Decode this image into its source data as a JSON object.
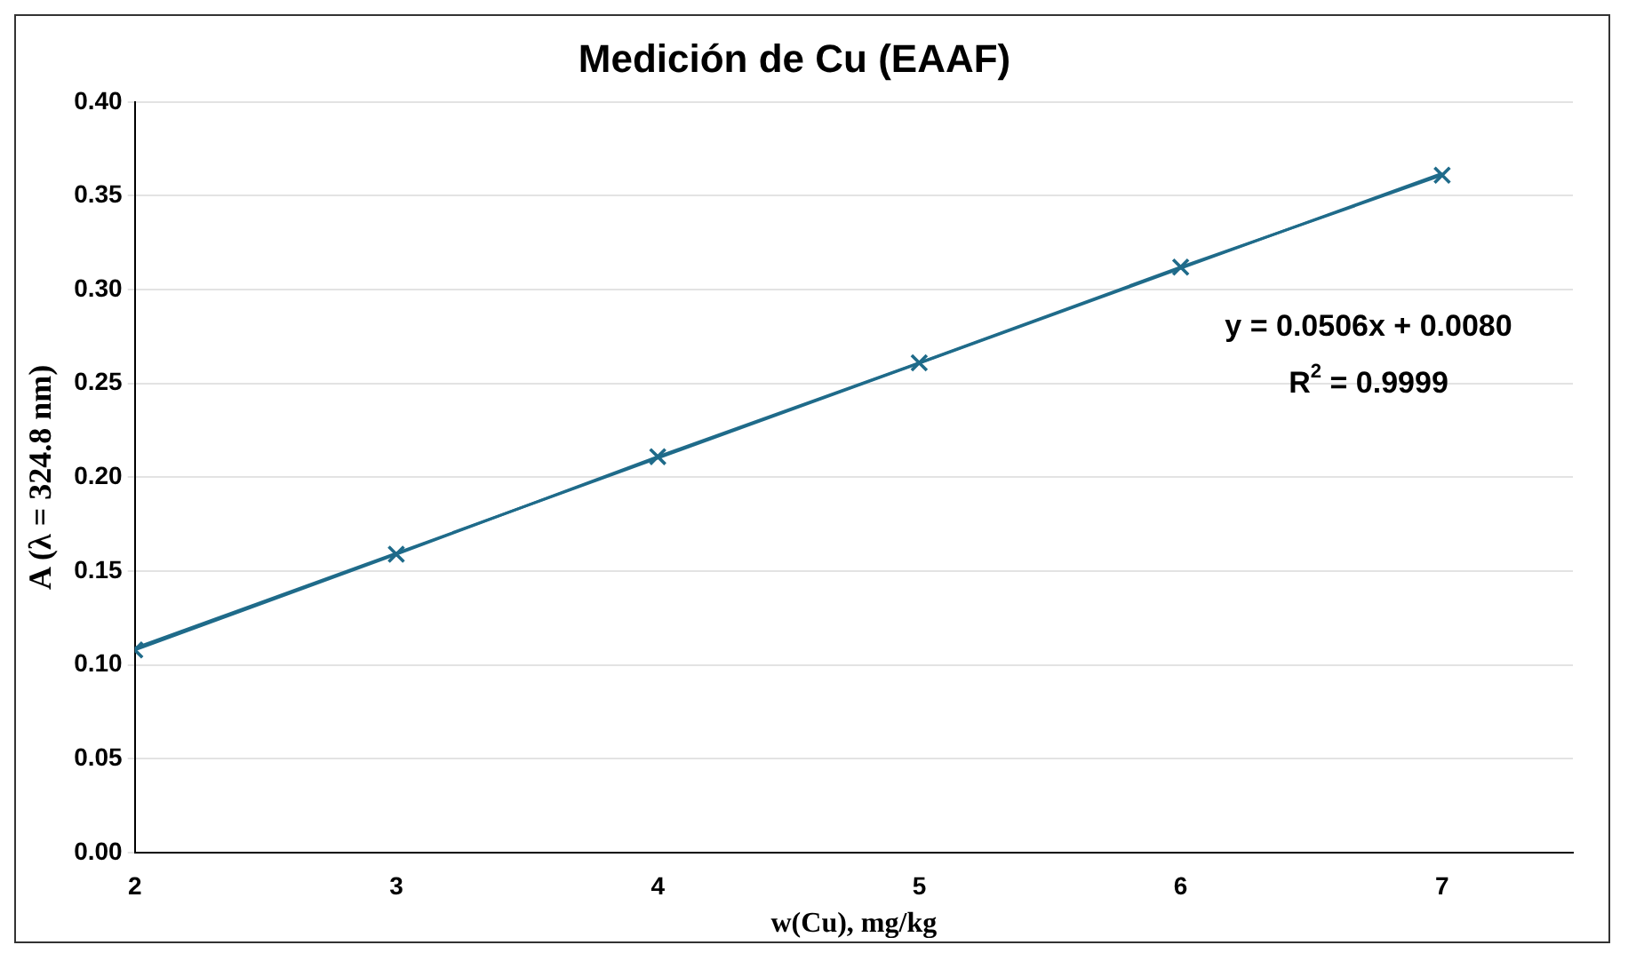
{
  "chart_data": {
    "type": "line",
    "title": "Medición de Cu (EAAF)",
    "xlabel": "w(Cu), mg/kg",
    "ylabel": "A (λ = 324.8 nm)",
    "x": [
      2,
      3,
      4,
      5,
      6,
      7
    ],
    "series": [
      {
        "color": "#1f6b8a",
        "values": [
          0.108,
          0.159,
          0.211,
          0.261,
          0.312,
          0.361
        ],
        "marker": "cross"
      },
      {
        "color": "#1f6b8a",
        "x": [
          2,
          7
        ],
        "values": [
          0.109,
          0.362
        ],
        "marker": "none"
      }
    ],
    "xlim": [
      2,
      7.5
    ],
    "xticks": [
      2,
      3,
      4,
      5,
      6,
      7
    ],
    "ylim": [
      0,
      0.4
    ],
    "yticks": [
      {
        "value": 0,
        "label": "0.00"
      },
      {
        "value": 0.05,
        "label": "0.05"
      },
      {
        "value": 0.1,
        "label": "0.10"
      },
      {
        "value": 0.15,
        "label": "0.15"
      },
      {
        "value": 0.2,
        "label": "0.20"
      },
      {
        "value": 0.25,
        "label": "0.25"
      },
      {
        "value": 0.3,
        "label": "0.30"
      },
      {
        "value": 0.35,
        "label": "0.35"
      },
      {
        "value": 0.4,
        "label": "0.40"
      }
    ],
    "grid": "y",
    "legend": false,
    "annotations": [
      "y = 0.0506x + 0.0080",
      "R$^{2}$ = 0.9999"
    ]
  }
}
